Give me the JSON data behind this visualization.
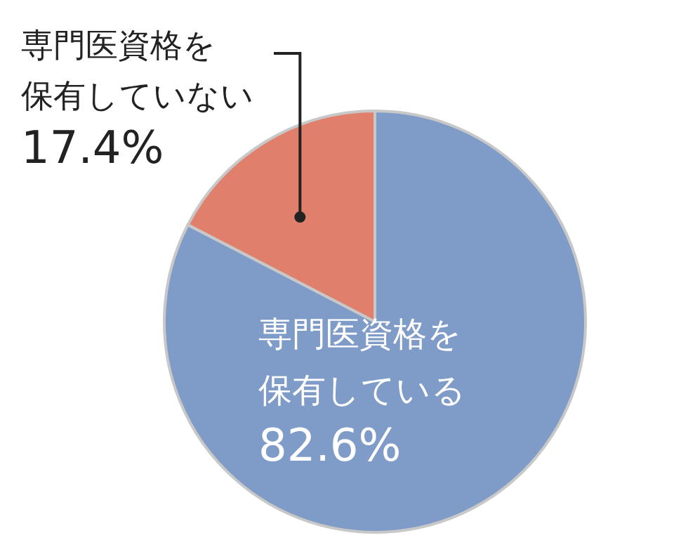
{
  "chart_data": {
    "type": "pie",
    "categories": [
      "専門医資格を保有している",
      "専門医資格を保有していない"
    ],
    "values": [
      82.6,
      17.4
    ],
    "value_labels": [
      "82.6%",
      "17.4%"
    ],
    "colors": [
      "#7f9bc8",
      "#e07f6c"
    ]
  }
}
